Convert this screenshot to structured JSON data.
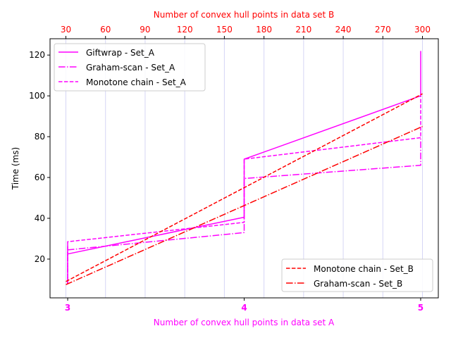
{
  "chart_data": {
    "type": "line",
    "xlabel_bottom": "Number of convex hull points in data set A",
    "xlabel_top": "Number of convex hull points in data set B",
    "ylabel": "Time (ms)",
    "bottom_axis": {
      "range": [
        2.9,
        5.1
      ],
      "ticks": [
        3,
        4,
        5
      ],
      "tick_labels": [
        "3",
        "4",
        "5"
      ],
      "color": "#ff00ff"
    },
    "top_axis": {
      "range": [
        18,
        312
      ],
      "ticks": [
        30,
        60,
        90,
        120,
        150,
        180,
        210,
        240,
        270,
        300
      ],
      "tick_labels": [
        "30",
        "60",
        "90",
        "120",
        "150",
        "180",
        "210",
        "240",
        "270",
        "300"
      ],
      "color": "#ff0000"
    },
    "y_axis": {
      "range": [
        1,
        128
      ],
      "ticks": [
        20,
        40,
        60,
        80,
        100,
        120
      ],
      "tick_labels": [
        "20",
        "40",
        "60",
        "80",
        "100",
        "120"
      ]
    },
    "grid": "vertical lines at top-axis ticks",
    "series_A": [
      {
        "name": "Giftwrap - Set_A",
        "color": "#ff00ff",
        "dash": "solid",
        "points": [
          [
            3,
            8
          ],
          [
            3,
            27
          ],
          [
            3,
            22.5
          ],
          [
            4,
            40.5
          ],
          [
            4,
            69
          ],
          [
            5,
            100
          ],
          [
            5,
            122
          ]
        ]
      },
      {
        "name": "Graham-scan - Set_A",
        "color": "#ff00ff",
        "dash": "dashdot",
        "points": [
          [
            3,
            8
          ],
          [
            3,
            24.5
          ],
          [
            4,
            33
          ],
          [
            4,
            59.5
          ],
          [
            5,
            66
          ],
          [
            5,
            80
          ]
        ]
      },
      {
        "name": "Monotone chain - Set_A",
        "color": "#ff00ff",
        "dash": "dashed",
        "points": [
          [
            3,
            8
          ],
          [
            3,
            28.5
          ],
          [
            4,
            38
          ],
          [
            4,
            69
          ],
          [
            5,
            79.5
          ],
          [
            5,
            100
          ]
        ]
      }
    ],
    "series_B": [
      {
        "name": "Monotone chain - Set_B",
        "color": "#ff0000",
        "dash": "dashed",
        "points": [
          [
            30,
            9
          ],
          [
            300,
            101
          ]
        ]
      },
      {
        "name": "Graham-scan - Set_B",
        "color": "#ff0000",
        "dash": "dashdot",
        "points": [
          [
            30,
            7.5
          ],
          [
            300,
            85
          ]
        ]
      }
    ],
    "legend_upper_left": [
      "Giftwrap - Set_A",
      "Graham-scan - Set_A",
      "Monotone chain - Set_A"
    ],
    "legend_lower_right": [
      "Monotone chain - Set_B",
      "Graham-scan - Set_B"
    ]
  }
}
